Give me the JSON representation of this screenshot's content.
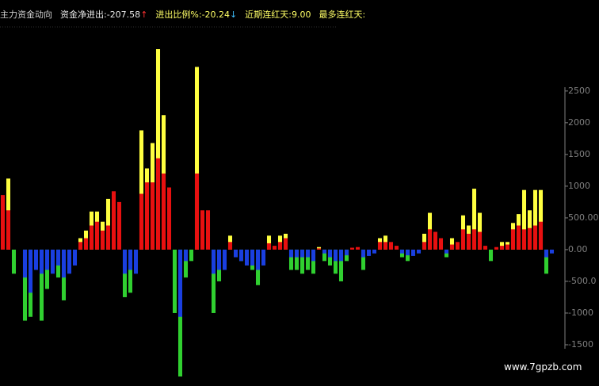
{
  "header": {
    "title": "主力资金动向",
    "items": [
      {
        "label": "资金净进出:",
        "value": "-207.58",
        "arrow": "↑",
        "color": "#e8e8e8",
        "arrow_color": "#ff3030"
      },
      {
        "label": "进出比例%:",
        "value": "-20.24",
        "arrow": "↓",
        "color": "#ffff66",
        "arrow_color": "#40c0ff"
      },
      {
        "label": "近期连红天:",
        "value": "9.00",
        "arrow": null,
        "color": "#ffff66",
        "arrow_color": null
      },
      {
        "label": "最多连红天:",
        "value": null,
        "arrow": null,
        "color": "#ffff66",
        "arrow_color": null
      }
    ]
  },
  "watermark": "www.7gpzb.com",
  "chart_data": {
    "type": "bar",
    "categories": [
      null,
      null,
      null,
      null,
      null,
      null,
      null,
      null,
      null,
      null,
      null,
      null,
      null,
      null,
      null,
      null,
      null,
      null,
      null,
      null,
      null,
      null,
      null,
      null,
      null,
      null,
      null,
      null,
      null,
      null,
      null,
      null,
      null,
      null,
      null,
      null,
      null,
      null,
      null,
      null,
      null,
      null,
      null,
      null,
      null,
      null,
      null,
      null,
      null,
      null,
      null,
      null,
      null,
      null,
      null,
      null,
      null,
      null,
      null,
      null,
      null,
      null,
      null,
      null,
      null,
      null,
      null,
      null,
      null,
      null,
      null,
      null,
      null,
      null,
      null,
      null,
      null,
      null,
      null,
      null,
      null,
      null,
      null,
      null,
      null,
      null,
      null,
      null,
      null,
      null,
      null,
      null,
      null,
      null,
      null,
      null,
      null,
      null,
      null,
      null
    ],
    "series": [
      {
        "color": "#ffff40",
        "values": [
          null,
          1120,
          null,
          null,
          null,
          null,
          null,
          null,
          null,
          null,
          null,
          null,
          null,
          null,
          180,
          300,
          600,
          600,
          440,
          800,
          null,
          null,
          null,
          null,
          null,
          1880,
          1280,
          1680,
          3160,
          2120,
          null,
          null,
          null,
          null,
          null,
          2880,
          null,
          null,
          null,
          null,
          null,
          220,
          null,
          null,
          null,
          null,
          null,
          null,
          220,
          null,
          220,
          250,
          null,
          null,
          null,
          null,
          null,
          40,
          null,
          null,
          null,
          null,
          null,
          null,
          null,
          null,
          null,
          null,
          180,
          220,
          null,
          null,
          null,
          null,
          null,
          null,
          250,
          580,
          null,
          null,
          null,
          180,
          null,
          540,
          380,
          960,
          580,
          null,
          null,
          null,
          120,
          120,
          420,
          560,
          940,
          620,
          940,
          940,
          null,
          null
        ]
      },
      {
        "color": "#e81010",
        "values": [
          860,
          620,
          null,
          null,
          null,
          null,
          null,
          null,
          null,
          null,
          null,
          null,
          null,
          null,
          120,
          180,
          380,
          440,
          300,
          380,
          920,
          750,
          null,
          null,
          null,
          880,
          1060,
          1060,
          1440,
          1200,
          980,
          null,
          null,
          null,
          null,
          1200,
          620,
          620,
          null,
          null,
          null,
          120,
          null,
          null,
          null,
          null,
          null,
          null,
          100,
          60,
          120,
          180,
          null,
          null,
          null,
          null,
          null,
          20,
          null,
          null,
          null,
          null,
          null,
          30,
          40,
          null,
          null,
          null,
          120,
          120,
          120,
          60,
          null,
          null,
          null,
          null,
          120,
          320,
          280,
          180,
          null,
          80,
          120,
          320,
          250,
          320,
          280,
          60,
          null,
          40,
          60,
          80,
          320,
          380,
          320,
          340,
          380,
          440,
          null,
          null
        ]
      },
      {
        "color": "#30d030",
        "values": [
          null,
          null,
          -380,
          null,
          -1120,
          -1060,
          null,
          -1120,
          -620,
          null,
          -440,
          -800,
          null,
          null,
          null,
          null,
          null,
          null,
          null,
          null,
          null,
          null,
          -750,
          -680,
          null,
          null,
          null,
          null,
          null,
          null,
          null,
          -1000,
          -2000,
          -440,
          -180,
          null,
          null,
          null,
          -1000,
          -500,
          null,
          null,
          null,
          -180,
          null,
          -320,
          -560,
          null,
          null,
          null,
          null,
          null,
          -320,
          -320,
          -380,
          -320,
          -380,
          null,
          -180,
          -250,
          -380,
          -500,
          -180,
          null,
          null,
          -320,
          null,
          null,
          null,
          null,
          null,
          null,
          -120,
          -180,
          null,
          null,
          null,
          null,
          null,
          null,
          -120,
          null,
          null,
          null,
          null,
          null,
          null,
          null,
          -180,
          null,
          null,
          null,
          null,
          null,
          null,
          null,
          null,
          null,
          -380,
          null
        ]
      },
      {
        "color": "#1a3fe0",
        "values": [
          null,
          null,
          null,
          null,
          -440,
          -680,
          -320,
          -380,
          -320,
          -380,
          -250,
          -440,
          -380,
          -250,
          null,
          null,
          null,
          null,
          null,
          null,
          null,
          null,
          -380,
          -320,
          -380,
          null,
          null,
          null,
          null,
          null,
          null,
          null,
          -1060,
          -180,
          null,
          null,
          null,
          null,
          -380,
          -320,
          -320,
          null,
          -120,
          -180,
          -250,
          -250,
          -320,
          -250,
          null,
          null,
          null,
          null,
          -120,
          -120,
          -120,
          -120,
          -180,
          null,
          -60,
          -120,
          -180,
          -180,
          -90,
          null,
          null,
          -120,
          -100,
          -60,
          null,
          null,
          null,
          null,
          -60,
          -90,
          -100,
          -60,
          null,
          null,
          null,
          null,
          -60,
          null,
          null,
          null,
          null,
          null,
          null,
          null,
          null,
          null,
          null,
          null,
          null,
          null,
          null,
          null,
          null,
          null,
          -120,
          -60
        ]
      }
    ],
    "ylim": [
      -2150,
      3560
    ],
    "yticks": [
      2500,
      2000,
      1500,
      1000,
      {
        "value": 500,
        "label": "500.00"
      },
      {
        "value": 0,
        "label": "0.00"
      },
      {
        "value": -500,
        "label": "-500.0"
      },
      -1000,
      -1500
    ],
    "axis_color": "#808080"
  }
}
